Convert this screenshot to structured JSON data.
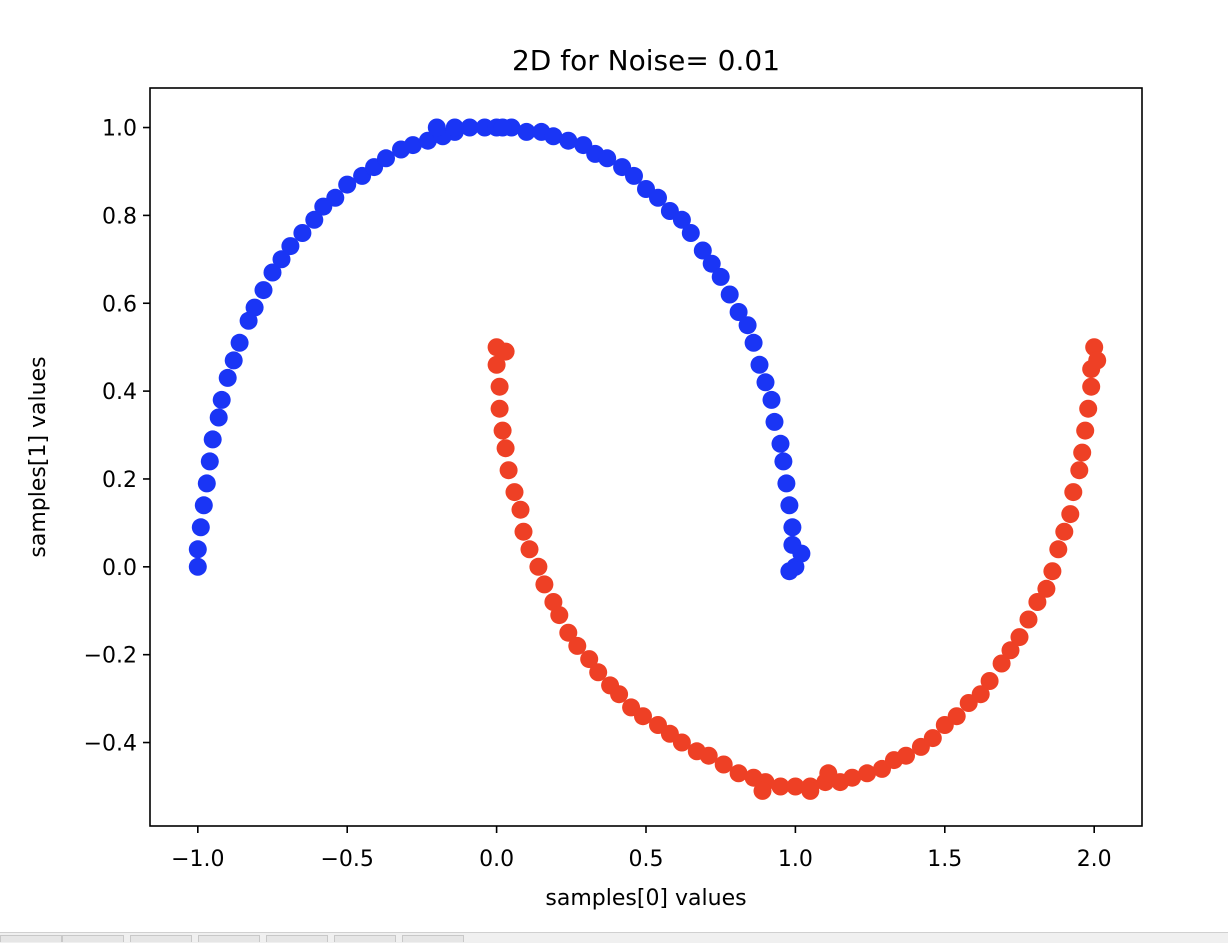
{
  "chart_data": {
    "type": "scatter",
    "title": "2D for Noise= 0.01",
    "xlabel": "samples[0] values",
    "ylabel": "samples[1] values",
    "xlim": [
      -1.16,
      2.16
    ],
    "ylim": [
      -0.59,
      1.09
    ],
    "xticks": [
      -1.0,
      -0.5,
      0.0,
      0.5,
      1.0,
      1.5,
      2.0
    ],
    "xtick_labels": [
      "−1.0",
      "−0.5",
      "0.0",
      "0.5",
      "1.0",
      "1.5",
      "2.0"
    ],
    "yticks": [
      -0.4,
      -0.2,
      0.0,
      0.2,
      0.4,
      0.6,
      0.8,
      1.0
    ],
    "ytick_labels": [
      "−0.4",
      "−0.2",
      "0.0",
      "0.2",
      "0.4",
      "0.6",
      "0.8",
      "1.0"
    ],
    "grid": false,
    "series": [
      {
        "color": "#1a35f5",
        "points": [
          [
            -1.0,
            0.0
          ],
          [
            -1.0,
            0.04
          ],
          [
            -0.99,
            0.09
          ],
          [
            -0.98,
            0.14
          ],
          [
            -0.97,
            0.19
          ],
          [
            -0.96,
            0.24
          ],
          [
            -0.95,
            0.29
          ],
          [
            -0.93,
            0.34
          ],
          [
            -0.92,
            0.38
          ],
          [
            -0.9,
            0.43
          ],
          [
            -0.88,
            0.47
          ],
          [
            -0.86,
            0.51
          ],
          [
            -0.83,
            0.56
          ],
          [
            -0.81,
            0.59
          ],
          [
            -0.78,
            0.63
          ],
          [
            -0.75,
            0.67
          ],
          [
            -0.72,
            0.7
          ],
          [
            -0.69,
            0.73
          ],
          [
            -0.65,
            0.76
          ],
          [
            -0.61,
            0.79
          ],
          [
            -0.58,
            0.82
          ],
          [
            -0.54,
            0.84
          ],
          [
            -0.5,
            0.87
          ],
          [
            -0.45,
            0.89
          ],
          [
            -0.41,
            0.91
          ],
          [
            -0.37,
            0.93
          ],
          [
            -0.32,
            0.95
          ],
          [
            -0.28,
            0.96
          ],
          [
            -0.23,
            0.97
          ],
          [
            -0.18,
            0.98
          ],
          [
            -0.14,
            0.99
          ],
          [
            -0.09,
            1.0
          ],
          [
            -0.04,
            1.0
          ],
          [
            0.0,
            1.0
          ],
          [
            0.05,
            1.0
          ],
          [
            0.1,
            0.99
          ],
          [
            0.15,
            0.99
          ],
          [
            0.19,
            0.98
          ],
          [
            0.24,
            0.97
          ],
          [
            0.29,
            0.96
          ],
          [
            0.33,
            0.94
          ],
          [
            0.37,
            0.93
          ],
          [
            0.42,
            0.91
          ],
          [
            0.46,
            0.89
          ],
          [
            0.5,
            0.86
          ],
          [
            0.54,
            0.84
          ],
          [
            0.58,
            0.81
          ],
          [
            0.62,
            0.79
          ],
          [
            0.65,
            0.76
          ],
          [
            0.69,
            0.72
          ],
          [
            0.72,
            0.69
          ],
          [
            0.75,
            0.66
          ],
          [
            0.78,
            0.62
          ],
          [
            0.81,
            0.58
          ],
          [
            0.84,
            0.55
          ],
          [
            0.86,
            0.51
          ],
          [
            0.88,
            0.46
          ],
          [
            0.9,
            0.42
          ],
          [
            0.92,
            0.38
          ],
          [
            0.93,
            0.33
          ],
          [
            0.95,
            0.28
          ],
          [
            0.96,
            0.24
          ],
          [
            0.97,
            0.19
          ],
          [
            0.98,
            0.14
          ],
          [
            0.99,
            0.09
          ],
          [
            0.99,
            0.05
          ],
          [
            1.0,
            0.0
          ],
          [
            -0.2,
            1.0
          ],
          [
            -0.14,
            1.0
          ],
          [
            0.02,
            1.0
          ],
          [
            1.02,
            0.03
          ],
          [
            0.98,
            -0.01
          ]
        ]
      },
      {
        "color": "#ee4025",
        "points": [
          [
            0.0,
            0.5
          ],
          [
            0.0,
            0.46
          ],
          [
            0.01,
            0.41
          ],
          [
            0.01,
            0.36
          ],
          [
            0.02,
            0.31
          ],
          [
            0.03,
            0.27
          ],
          [
            0.04,
            0.22
          ],
          [
            0.06,
            0.17
          ],
          [
            0.08,
            0.13
          ],
          [
            0.09,
            0.08
          ],
          [
            0.11,
            0.04
          ],
          [
            0.14,
            0.0
          ],
          [
            0.16,
            -0.04
          ],
          [
            0.19,
            -0.08
          ],
          [
            0.21,
            -0.11
          ],
          [
            0.24,
            -0.15
          ],
          [
            0.27,
            -0.18
          ],
          [
            0.31,
            -0.21
          ],
          [
            0.34,
            -0.24
          ],
          [
            0.38,
            -0.27
          ],
          [
            0.41,
            -0.29
          ],
          [
            0.45,
            -0.32
          ],
          [
            0.49,
            -0.34
          ],
          [
            0.54,
            -0.36
          ],
          [
            0.58,
            -0.38
          ],
          [
            0.62,
            -0.4
          ],
          [
            0.67,
            -0.42
          ],
          [
            0.71,
            -0.43
          ],
          [
            0.76,
            -0.45
          ],
          [
            0.81,
            -0.47
          ],
          [
            0.86,
            -0.48
          ],
          [
            0.9,
            -0.49
          ],
          [
            0.95,
            -0.5
          ],
          [
            1.0,
            -0.5
          ],
          [
            1.05,
            -0.5
          ],
          [
            1.1,
            -0.49
          ],
          [
            1.15,
            -0.49
          ],
          [
            1.19,
            -0.48
          ],
          [
            1.24,
            -0.47
          ],
          [
            1.29,
            -0.46
          ],
          [
            1.33,
            -0.44
          ],
          [
            1.37,
            -0.43
          ],
          [
            1.42,
            -0.41
          ],
          [
            1.46,
            -0.39
          ],
          [
            1.5,
            -0.36
          ],
          [
            1.54,
            -0.34
          ],
          [
            1.58,
            -0.31
          ],
          [
            1.62,
            -0.29
          ],
          [
            1.65,
            -0.26
          ],
          [
            1.69,
            -0.22
          ],
          [
            1.72,
            -0.19
          ],
          [
            1.75,
            -0.16
          ],
          [
            1.78,
            -0.12
          ],
          [
            1.81,
            -0.08
          ],
          [
            1.84,
            -0.05
          ],
          [
            1.86,
            -0.01
          ],
          [
            1.88,
            0.04
          ],
          [
            1.9,
            0.08
          ],
          [
            1.92,
            0.12
          ],
          [
            1.93,
            0.17
          ],
          [
            1.95,
            0.22
          ],
          [
            1.96,
            0.26
          ],
          [
            1.97,
            0.31
          ],
          [
            1.98,
            0.36
          ],
          [
            1.99,
            0.41
          ],
          [
            1.99,
            0.45
          ],
          [
            2.0,
            0.5
          ],
          [
            0.03,
            0.49
          ],
          [
            2.01,
            0.47
          ],
          [
            0.89,
            -0.51
          ],
          [
            1.05,
            -0.51
          ],
          [
            1.11,
            -0.47
          ]
        ]
      }
    ]
  }
}
